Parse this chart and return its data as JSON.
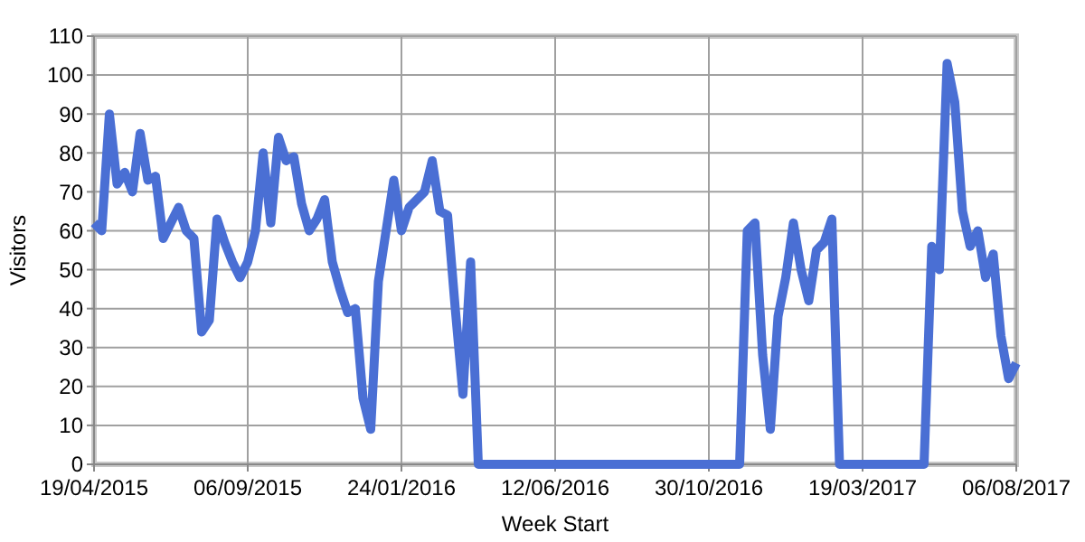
{
  "chart_data": {
    "type": "line",
    "xlabel": "Week Start",
    "ylabel": "Visitors",
    "categories": [
      "19/04/2015",
      null,
      null,
      null,
      null,
      null,
      null,
      null,
      null,
      null,
      null,
      null,
      null,
      null,
      null,
      null,
      null,
      null,
      null,
      null,
      "06/09/2015",
      null,
      null,
      null,
      null,
      null,
      null,
      null,
      null,
      null,
      null,
      null,
      null,
      null,
      null,
      null,
      null,
      null,
      null,
      null,
      "24/01/2016",
      null,
      null,
      null,
      null,
      null,
      null,
      null,
      null,
      null,
      null,
      null,
      null,
      null,
      null,
      null,
      null,
      null,
      null,
      null,
      "12/06/2016",
      null,
      null,
      null,
      null,
      null,
      null,
      null,
      null,
      null,
      null,
      null,
      null,
      null,
      null,
      null,
      null,
      null,
      null,
      null,
      "30/10/2016",
      null,
      null,
      null,
      null,
      null,
      null,
      null,
      null,
      null,
      null,
      null,
      null,
      null,
      null,
      null,
      null,
      null,
      null,
      null,
      "19/03/2017",
      null,
      null,
      null,
      null,
      null,
      null,
      null,
      null,
      null,
      null,
      null,
      null,
      null,
      null,
      null,
      null,
      null,
      null,
      null,
      "06/08/2017"
    ],
    "series": [
      {
        "color": "#4a6fd4",
        "values": [
          62,
          60,
          90,
          72,
          75,
          70,
          85,
          73,
          74,
          58,
          62,
          66,
          60,
          58,
          34,
          37,
          63,
          57,
          52,
          48,
          52,
          60,
          80,
          62,
          84,
          78,
          79,
          67,
          60,
          63,
          68,
          52,
          45,
          39,
          40,
          17,
          9,
          47,
          60,
          73,
          60,
          66,
          68,
          70,
          78,
          65,
          64,
          40,
          18,
          52,
          0,
          0,
          0,
          0,
          0,
          0,
          0,
          0,
          0,
          0,
          0,
          0,
          0,
          0,
          0,
          0,
          0,
          0,
          0,
          0,
          0,
          0,
          0,
          0,
          0,
          0,
          0,
          0,
          0,
          0,
          0,
          0,
          0,
          0,
          0,
          60,
          62,
          28,
          9,
          38,
          48,
          62,
          50,
          42,
          55,
          57,
          63,
          0,
          0,
          0,
          0,
          0,
          0,
          0,
          0,
          0,
          0,
          0,
          0,
          56,
          50,
          103,
          93,
          65,
          56,
          60,
          48,
          54,
          33,
          22,
          26
        ]
      }
    ],
    "ylim": [
      0,
      110
    ],
    "yticks": [
      0,
      10,
      20,
      30,
      40,
      50,
      60,
      70,
      80,
      90,
      100,
      110
    ],
    "grid": true,
    "marker": "none",
    "line_style": "solid"
  }
}
